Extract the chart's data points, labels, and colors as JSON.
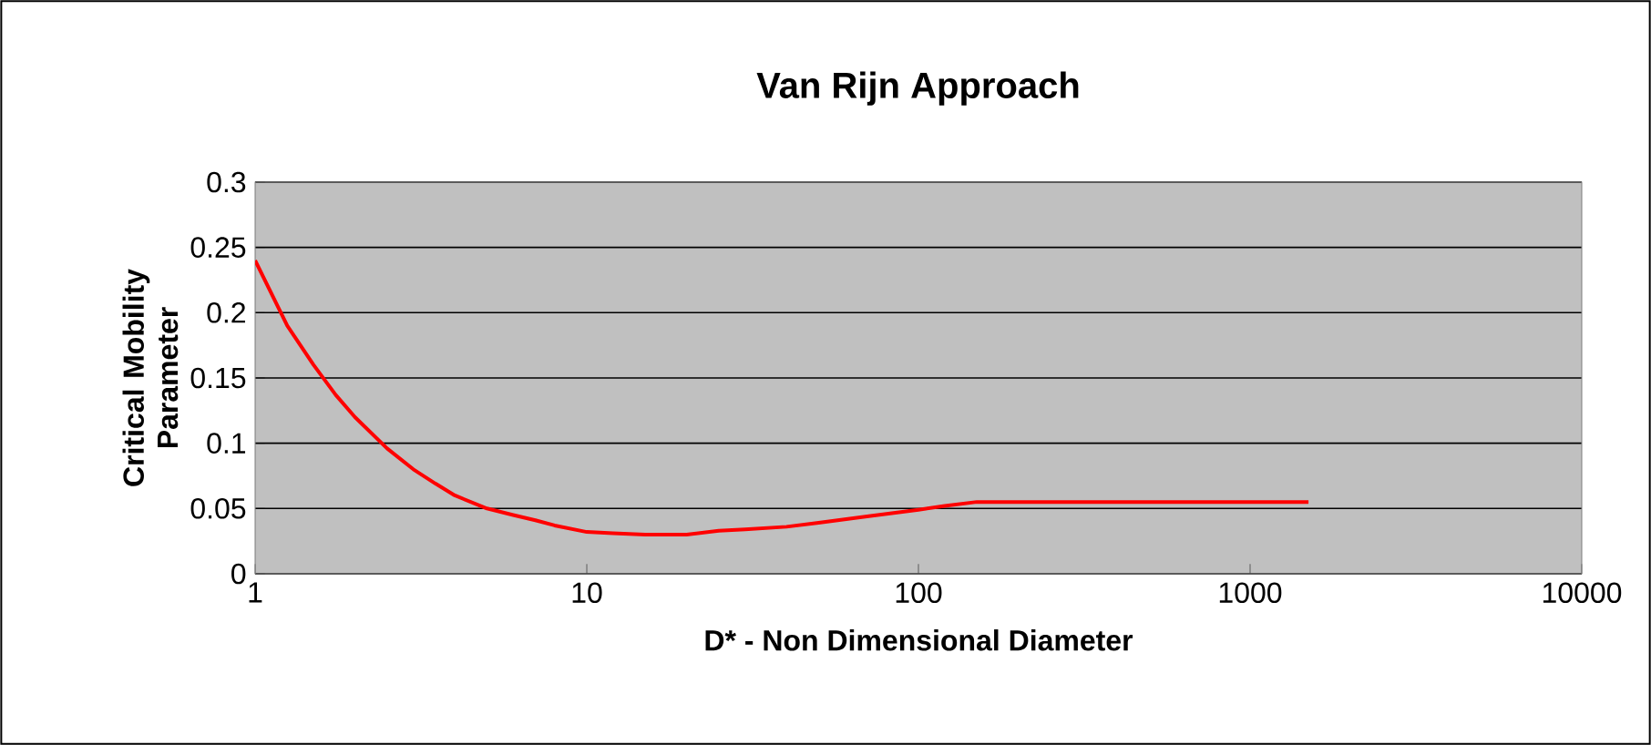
{
  "chart_data": {
    "type": "line",
    "title": "Van Rijn Approach",
    "xlabel": "D* - Non Dimensional Diameter",
    "ylabel": "Critical Mobility Parameter",
    "log": "x",
    "grid": "y",
    "marker": "none",
    "line_style": "solid",
    "xlim": [
      1,
      10000
    ],
    "xticks": [
      1,
      10,
      100,
      1000,
      10000
    ],
    "ylim": [
      0,
      0.3
    ],
    "yticks": [
      0,
      0.05,
      0.1,
      0.15,
      0.2,
      0.25,
      0.3
    ],
    "series": [
      {
        "color": "#ff0000",
        "x": [
          1,
          1.25,
          1.5,
          1.75,
          2,
          2.5,
          3,
          3.5,
          4,
          5,
          6,
          7,
          8,
          10,
          12,
          15,
          20,
          25,
          30,
          40,
          50,
          70,
          100,
          120,
          150,
          300,
          600,
          1000,
          1500
        ],
        "values": [
          0.24,
          0.19,
          0.16,
          0.137,
          0.12,
          0.096,
          0.08,
          0.069,
          0.06,
          0.05,
          0.045,
          0.041,
          0.037,
          0.032,
          0.031,
          0.03,
          0.03,
          0.033,
          0.034,
          0.036,
          0.039,
          0.044,
          0.049,
          0.052,
          0.055,
          0.055,
          0.055,
          0.055,
          0.055
        ]
      }
    ]
  }
}
